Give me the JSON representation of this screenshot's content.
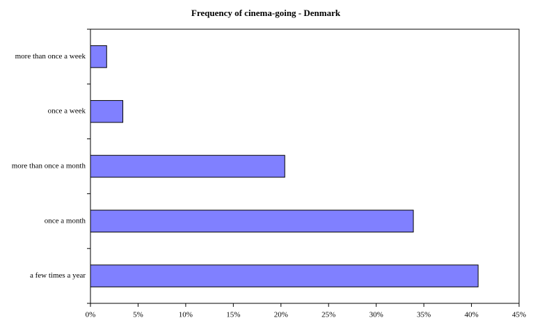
{
  "chart_data": {
    "type": "bar",
    "title": "Frequency of cinema-going - Denmark",
    "categories": [
      "more than once a week",
      "once a week",
      "more than once a month",
      "once a month",
      "a few times a year"
    ],
    "values": [
      1.7,
      3.4,
      20.4,
      33.9,
      40.7
    ],
    "color": "#8080ff",
    "xlim": [
      0,
      45
    ],
    "xticks": [
      {
        "value": 0,
        "label": "0%"
      },
      {
        "value": 5,
        "label": "5%"
      },
      {
        "value": 10,
        "label": "10%"
      },
      {
        "value": 15,
        "label": "15%"
      },
      {
        "value": 20,
        "label": "20%"
      },
      {
        "value": 25,
        "label": "25%"
      },
      {
        "value": 30,
        "label": "30%"
      },
      {
        "value": 35,
        "label": "35%"
      },
      {
        "value": 40,
        "label": "40%"
      },
      {
        "value": 45,
        "label": "45%"
      }
    ],
    "grid": false
  }
}
